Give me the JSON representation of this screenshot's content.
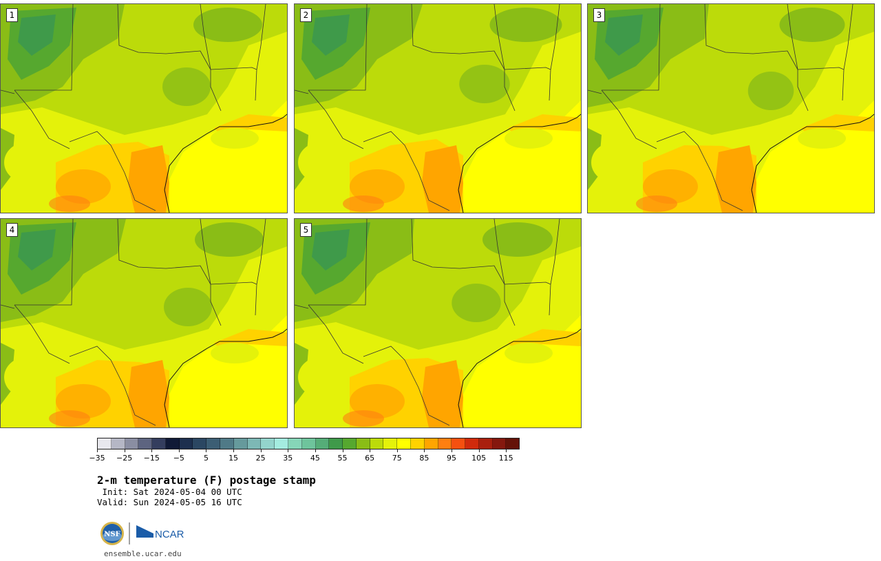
{
  "title": "2-m temperature (F) postage stamp",
  "init_label": " Init: Sat 2024-05-04 00 UTC",
  "valid_label": "Valid: Sun 2024-05-05 16 UTC",
  "website": "ensemble.ucar.edu",
  "logos": {
    "nsf": "NSF",
    "ncar": "NCAR"
  },
  "members": [
    {
      "label": "1"
    },
    {
      "label": "2"
    },
    {
      "label": "3"
    },
    {
      "label": "4"
    },
    {
      "label": "5"
    }
  ],
  "colorbar": {
    "ticks": [
      "−35",
      "−25",
      "−15",
      "−5",
      "5",
      "15",
      "25",
      "35",
      "45",
      "55",
      "65",
      "75",
      "85",
      "95",
      "105",
      "115"
    ],
    "colors": [
      "#e8e8ee",
      "#b5b7c5",
      "#8a8ea2",
      "#5d6480",
      "#343e5e",
      "#101a36",
      "#1d2f4e",
      "#2b4762",
      "#3c5e74",
      "#4f7a87",
      "#669a9c",
      "#7db8b5",
      "#93d4cc",
      "#a4ece0",
      "#86d6b8",
      "#6ec49c",
      "#55ad78",
      "#3f9a4a",
      "#56a82f",
      "#8abd16",
      "#bcdb0a",
      "#e4f20a",
      "#ffff00",
      "#ffd200",
      "#ffa500",
      "#ff7f10",
      "#f55010",
      "#d02a0c",
      "#a9200e",
      "#85180e",
      "#641208"
    ]
  }
}
